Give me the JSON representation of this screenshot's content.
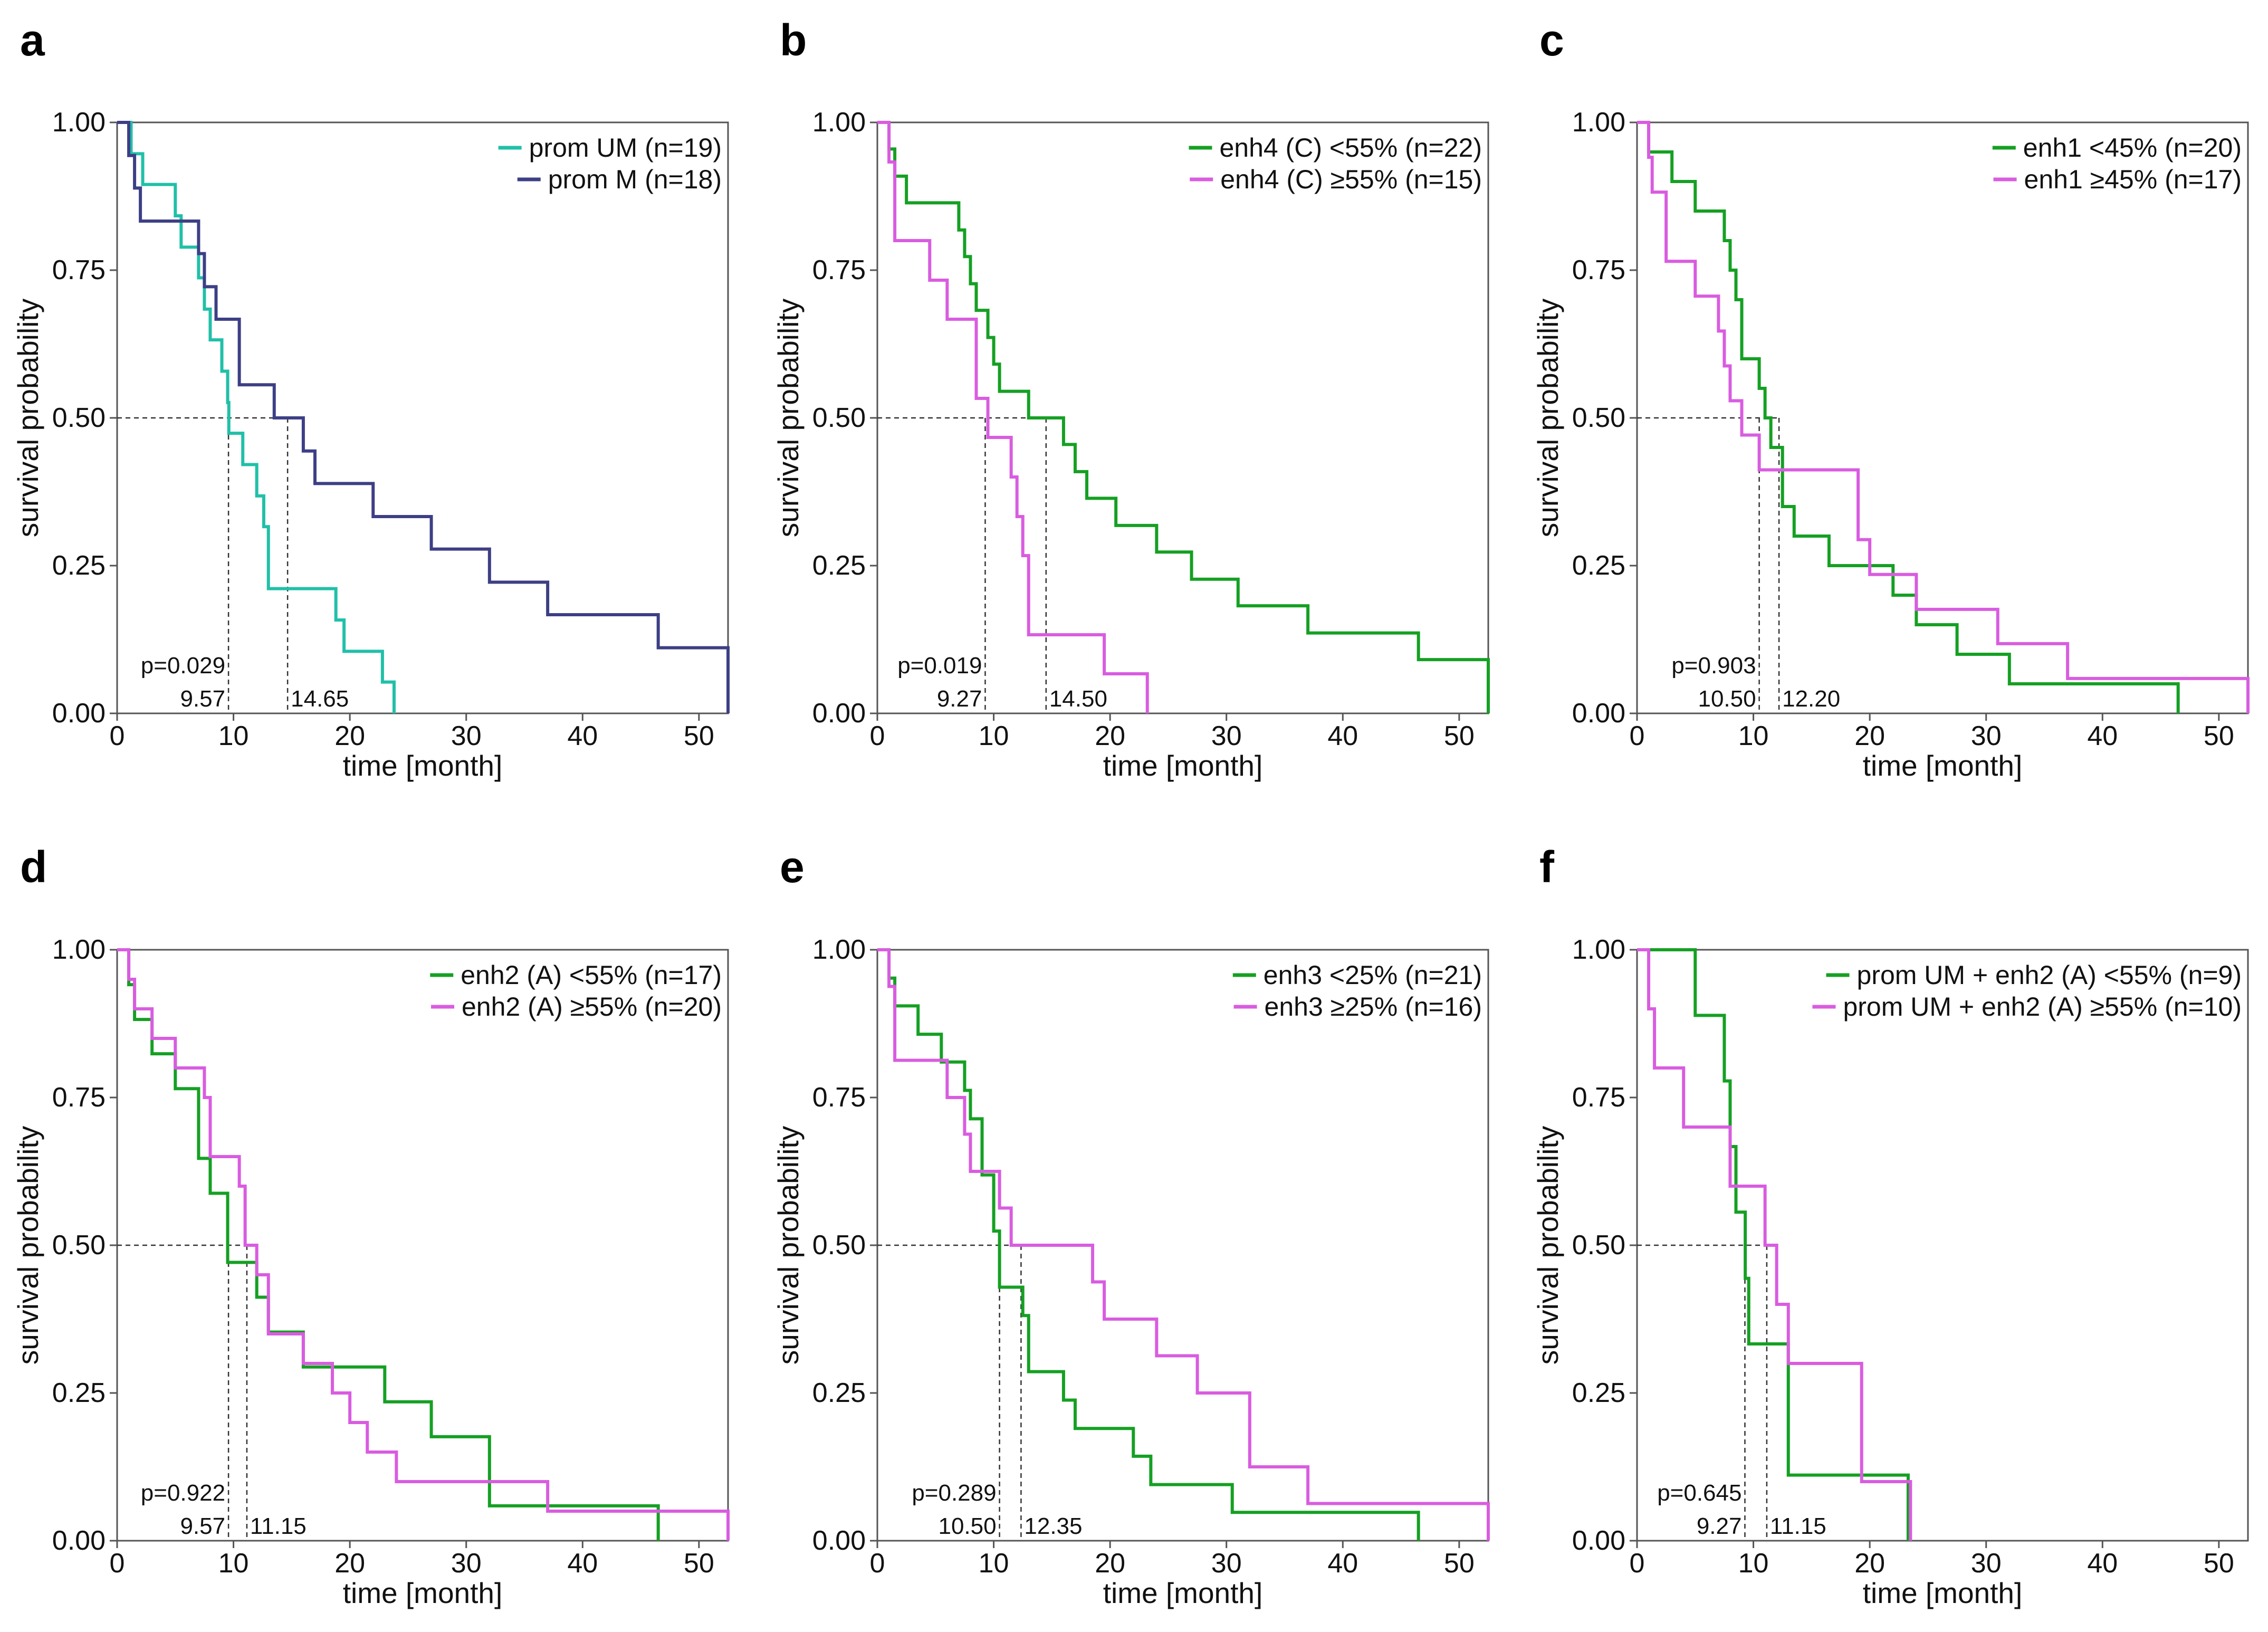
{
  "colors": {
    "teal": "#20c0a8",
    "navy": "#3d3f85",
    "green": "#15a023",
    "magenta": "#d95ce0",
    "axis": "#555555",
    "refline": "#333333"
  },
  "chart_data": [
    {
      "letter": "a",
      "type": "line",
      "subtype": "kaplan-meier",
      "xlabel": "time [month]",
      "ylabel": "survival probability",
      "xlim": [
        0,
        52.5
      ],
      "ylim": [
        0,
        1
      ],
      "xticks": [
        "0",
        "10",
        "20",
        "30",
        "40",
        "50"
      ],
      "yticks": [
        "0.00",
        "0.25",
        "0.50",
        "0.75",
        "1.00"
      ],
      "pvalue": "p=0.029",
      "medians": [
        {
          "x": 9.57,
          "label": "9.57"
        },
        {
          "x": 14.65,
          "label": "14.65"
        }
      ],
      "series": [
        {
          "name": "prom UM (n=19)",
          "color": "#20c0a8",
          "times": [
            1.2,
            2.2,
            5.0,
            5.5,
            7.0,
            7.5,
            8.0,
            9.0,
            9.5,
            9.6,
            10.8,
            12.0,
            12.6,
            13.0,
            18.8,
            19.5,
            22.8,
            23.8
          ],
          "surv": [
            0.947,
            0.895,
            0.842,
            0.789,
            0.737,
            0.684,
            0.632,
            0.579,
            0.526,
            0.474,
            0.421,
            0.368,
            0.316,
            0.211,
            0.158,
            0.105,
            0.053,
            0.0
          ]
        },
        {
          "name": "prom M (n=18)",
          "color": "#3d3f85",
          "times": [
            1.0,
            1.5,
            2.0,
            7.0,
            7.5,
            8.5,
            10.5,
            13.5,
            16.0,
            17.0,
            22.0,
            27.0,
            32.0,
            37.0,
            46.5,
            52.5
          ],
          "surv": [
            0.944,
            0.889,
            0.833,
            0.778,
            0.722,
            0.667,
            0.556,
            0.5,
            0.444,
            0.389,
            0.333,
            0.278,
            0.222,
            0.167,
            0.111,
            0.0
          ]
        }
      ]
    },
    {
      "letter": "b",
      "type": "line",
      "subtype": "kaplan-meier",
      "xlabel": "time [month]",
      "ylabel": "survival probability",
      "xlim": [
        0,
        52.5
      ],
      "ylim": [
        0,
        1
      ],
      "xticks": [
        "0",
        "10",
        "20",
        "30",
        "40",
        "50"
      ],
      "yticks": [
        "0.00",
        "0.25",
        "0.50",
        "0.75",
        "1.00"
      ],
      "pvalue": "p=0.019",
      "medians": [
        {
          "x": 9.27,
          "label": "9.27"
        },
        {
          "x": 14.5,
          "label": "14.50"
        }
      ],
      "series": [
        {
          "name": "enh4 (C) <55% (n=22)",
          "color": "#15a023",
          "times": [
            1.0,
            1.5,
            2.5,
            7.0,
            7.5,
            8.0,
            8.5,
            9.5,
            10.0,
            10.5,
            13.0,
            16.0,
            17.0,
            18.0,
            20.5,
            24.0,
            27.0,
            31.0,
            37.0,
            46.5,
            52.5
          ],
          "surv": [
            0.955,
            0.909,
            0.864,
            0.818,
            0.773,
            0.727,
            0.682,
            0.636,
            0.591,
            0.545,
            0.5,
            0.455,
            0.409,
            0.364,
            0.318,
            0.273,
            0.227,
            0.182,
            0.136,
            0.091,
            0.0
          ]
        },
        {
          "name": "enh4 (C) ≥55% (n=15)",
          "color": "#d95ce0",
          "times": [
            1.0,
            1.5,
            4.5,
            6.0,
            8.5,
            9.5,
            11.5,
            12.0,
            12.5,
            13.0,
            19.5,
            23.2
          ],
          "surv": [
            0.933,
            0.8,
            0.733,
            0.667,
            0.533,
            0.467,
            0.4,
            0.333,
            0.267,
            0.133,
            0.067,
            0.0
          ]
        }
      ]
    },
    {
      "letter": "c",
      "type": "line",
      "subtype": "kaplan-meier",
      "xlabel": "time [month]",
      "ylabel": "survival probability",
      "xlim": [
        0,
        52.5
      ],
      "ylim": [
        0,
        1
      ],
      "xticks": [
        "0",
        "10",
        "20",
        "30",
        "40",
        "50"
      ],
      "yticks": [
        "0.00",
        "0.25",
        "0.50",
        "0.75",
        "1.00"
      ],
      "pvalue": "p=0.903",
      "medians": [
        {
          "x": 10.5,
          "label": "10.50"
        },
        {
          "x": 12.2,
          "label": "12.20"
        }
      ],
      "series": [
        {
          "name": "enh1 <45% (n=20)",
          "color": "#15a023",
          "times": [
            1.0,
            3.0,
            5.0,
            7.5,
            8.0,
            8.5,
            9.0,
            10.5,
            11.0,
            11.5,
            12.5,
            13.5,
            16.5,
            22.0,
            24.0,
            27.5,
            32.0,
            46.5
          ],
          "surv": [
            0.95,
            0.9,
            0.85,
            0.8,
            0.75,
            0.7,
            0.6,
            0.55,
            0.5,
            0.45,
            0.35,
            0.3,
            0.25,
            0.2,
            0.15,
            0.1,
            0.05,
            0.0
          ]
        },
        {
          "name": "enh1 ≥45% (n=17)",
          "color": "#d95ce0",
          "times": [
            1.0,
            1.3,
            2.5,
            5.0,
            7.0,
            7.5,
            8.0,
            9.0,
            10.5,
            19.0,
            20.0,
            24.0,
            31.0,
            37.0,
            52.5
          ],
          "surv": [
            0.941,
            0.882,
            0.765,
            0.706,
            0.647,
            0.588,
            0.529,
            0.471,
            0.412,
            0.294,
            0.235,
            0.176,
            0.118,
            0.059,
            0.0
          ]
        }
      ]
    },
    {
      "letter": "d",
      "type": "line",
      "subtype": "kaplan-meier",
      "xlabel": "time [month]",
      "ylabel": "survival probability",
      "xlim": [
        0,
        52.5
      ],
      "ylim": [
        0,
        1
      ],
      "xticks": [
        "0",
        "10",
        "20",
        "30",
        "40",
        "50"
      ],
      "yticks": [
        "0.00",
        "0.25",
        "0.50",
        "0.75",
        "1.00"
      ],
      "pvalue": "p=0.922",
      "medians": [
        {
          "x": 9.57,
          "label": "9.57"
        },
        {
          "x": 11.15,
          "label": "11.15"
        }
      ],
      "series": [
        {
          "name": "enh2 (A) <55% (n=17)",
          "color": "#15a023",
          "times": [
            1.0,
            1.5,
            3.0,
            5.0,
            7.0,
            8.0,
            9.5,
            12.0,
            13.0,
            16.0,
            23.0,
            27.0,
            32.0,
            46.5
          ],
          "surv": [
            0.941,
            0.882,
            0.824,
            0.765,
            0.647,
            0.588,
            0.471,
            0.412,
            0.353,
            0.294,
            0.235,
            0.176,
            0.059,
            0.0
          ]
        },
        {
          "name": "enh2 (A) ≥55% (n=20)",
          "color": "#d95ce0",
          "times": [
            1.0,
            1.5,
            3.0,
            5.0,
            7.5,
            8.0,
            10.5,
            11.0,
            12.0,
            13.0,
            16.0,
            18.5,
            20.0,
            21.5,
            24.0,
            37.0,
            52.5
          ],
          "surv": [
            0.95,
            0.9,
            0.85,
            0.8,
            0.75,
            0.65,
            0.6,
            0.5,
            0.45,
            0.35,
            0.3,
            0.25,
            0.2,
            0.15,
            0.1,
            0.05,
            0.0
          ]
        }
      ]
    },
    {
      "letter": "e",
      "type": "line",
      "subtype": "kaplan-meier",
      "xlabel": "time [month]",
      "ylabel": "survival probability",
      "xlim": [
        0,
        52.5
      ],
      "ylim": [
        0,
        1
      ],
      "xticks": [
        "0",
        "10",
        "20",
        "30",
        "40",
        "50"
      ],
      "yticks": [
        "0.00",
        "0.25",
        "0.50",
        "0.75",
        "1.00"
      ],
      "pvalue": "p=0.289",
      "medians": [
        {
          "x": 10.5,
          "label": "10.50"
        },
        {
          "x": 12.35,
          "label": "12.35"
        }
      ],
      "series": [
        {
          "name": "enh3 <25% (n=21)",
          "color": "#15a023",
          "times": [
            1.0,
            1.5,
            3.5,
            5.5,
            7.5,
            8.0,
            9.0,
            10.0,
            10.5,
            12.5,
            13.0,
            16.0,
            17.0,
            22.0,
            23.5,
            30.5,
            46.5
          ],
          "surv": [
            0.952,
            0.905,
            0.857,
            0.81,
            0.762,
            0.714,
            0.619,
            0.524,
            0.429,
            0.381,
            0.286,
            0.238,
            0.19,
            0.143,
            0.095,
            0.048,
            0.0
          ]
        },
        {
          "name": "enh3 ≥25% (n=16)",
          "color": "#d95ce0",
          "times": [
            1.0,
            1.5,
            6.0,
            7.5,
            8.0,
            9.0,
            10.5,
            11.5,
            18.5,
            19.5,
            24.0,
            27.5,
            32.0,
            37.0,
            52.5
          ],
          "surv": [
            0.938,
            0.813,
            0.75,
            0.688,
            0.625,
            0.625,
            0.563,
            0.5,
            0.438,
            0.375,
            0.313,
            0.25,
            0.125,
            0.063,
            0.0
          ]
        }
      ]
    },
    {
      "letter": "f",
      "type": "line",
      "subtype": "kaplan-meier",
      "xlabel": "time [month]",
      "ylabel": "survival probability",
      "xlim": [
        0,
        52.5
      ],
      "ylim": [
        0,
        1
      ],
      "xticks": [
        "0",
        "10",
        "20",
        "30",
        "40",
        "50"
      ],
      "yticks": [
        "0.00",
        "0.25",
        "0.50",
        "0.75",
        "1.00"
      ],
      "pvalue": "p=0.645",
      "medians": [
        {
          "x": 9.27,
          "label": "9.27"
        },
        {
          "x": 11.15,
          "label": "11.15"
        }
      ],
      "series": [
        {
          "name": "prom UM + enh2 (A) <55% (n=9)",
          "color": "#15a023",
          "times": [
            5.0,
            7.5,
            8.0,
            8.5,
            9.3,
            9.6,
            13.0,
            23.3
          ],
          "surv": [
            0.889,
            0.778,
            0.667,
            0.556,
            0.444,
            0.333,
            0.111,
            0.0
          ]
        },
        {
          "name": "prom UM + enh2 (A) ≥55% (n=10)",
          "color": "#d95ce0",
          "times": [
            1.0,
            1.5,
            4.0,
            8.0,
            11.0,
            12.0,
            13.0,
            19.3,
            23.5
          ],
          "surv": [
            0.9,
            0.8,
            0.7,
            0.6,
            0.5,
            0.4,
            0.3,
            0.1,
            0.0
          ]
        }
      ]
    }
  ]
}
